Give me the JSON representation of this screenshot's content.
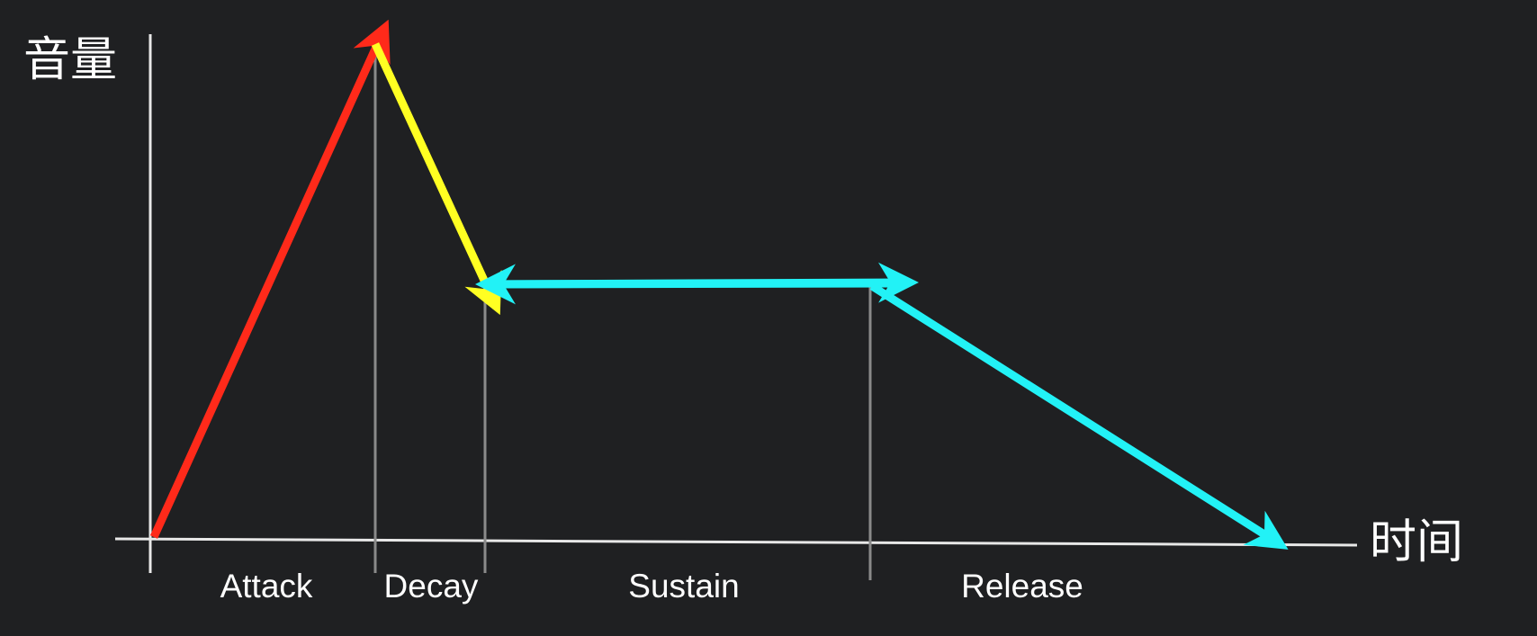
{
  "axis": {
    "y_label": "音量",
    "x_label": "时间"
  },
  "phases": [
    {
      "label": "Attack"
    },
    {
      "label": "Decay"
    },
    {
      "label": "Sustain"
    },
    {
      "label": "Release"
    }
  ]
}
